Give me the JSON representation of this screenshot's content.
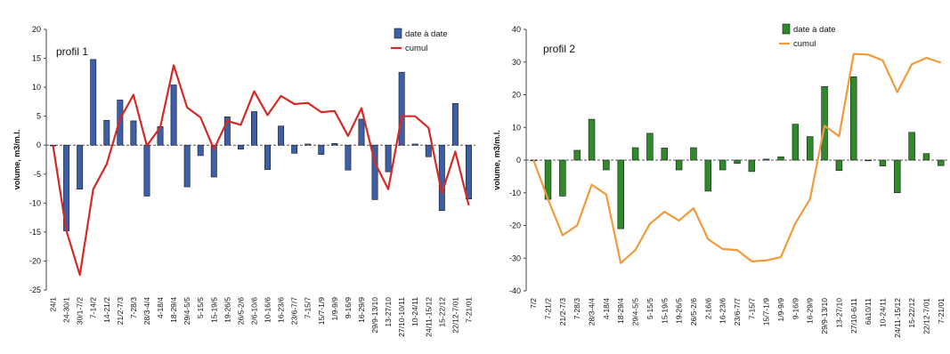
{
  "chart_data": [
    {
      "type": "bar",
      "annotation": "profil 1",
      "ylabel": "volume, m3/m.l.",
      "ylim": [
        -25,
        20
      ],
      "yticks": [
        -25,
        -20,
        -15,
        -10,
        -5,
        0,
        5,
        10,
        15,
        20
      ],
      "legend": "top-right",
      "categories": [
        "24/1",
        "24-30/1",
        "30/1-7/2",
        "7-14/2",
        "14-21/2",
        "21/2-7/3",
        "7-28/3",
        "28/3-4/4",
        "4-18/4",
        "18-29/4",
        "29/4-5/5",
        "5-15/5",
        "15-19/5",
        "19-26/5",
        "26/5-2/6",
        "2/6-10/6",
        "10-16/6",
        "16-23/6",
        "23/6-7/7",
        "7-15/7",
        "15/7-1/9",
        "1/9-9/9",
        "9-16/9",
        "16-29/9",
        "29/9-13/10",
        "13-27/10",
        "27/10-10/11",
        "10-24/11",
        "24/11-15/12",
        "15-22/12",
        "22/12-7/01",
        "7-21/01"
      ],
      "series": [
        {
          "name": "date à date",
          "kind": "bar",
          "color": "#3d5fa8",
          "values": [
            0,
            -14.8,
            -7.6,
            14.8,
            4.3,
            7.8,
            4.2,
            -8.8,
            3.2,
            10.4,
            -7.2,
            -1.8,
            -5.5,
            4.9,
            -0.7,
            5.8,
            -4.2,
            3.3,
            -1.4,
            0.2,
            -1.6,
            0.3,
            -4.3,
            4.5,
            -9.4,
            -4.6,
            12.6,
            0.2,
            -2.0,
            -11.3,
            7.2,
            -9.3
          ]
        },
        {
          "name": "cumul",
          "kind": "line",
          "color": "#d42a25",
          "values": [
            0,
            -14.8,
            -22.4,
            -7.6,
            -3.3,
            4.5,
            8.7,
            -0.1,
            3.1,
            13.8,
            6.5,
            4.8,
            -0.7,
            4.2,
            3.5,
            9.3,
            5.2,
            8.5,
            7.1,
            7.3,
            5.7,
            5.9,
            1.6,
            6.4,
            -3.0,
            -7.6,
            5.0,
            5.0,
            3.0,
            -8.3,
            -1.1,
            -10.4
          ]
        }
      ]
    },
    {
      "type": "bar",
      "annotation": "profil 2",
      "ylabel": "volume, m3/m.l.",
      "ylim": [
        -40,
        40
      ],
      "yticks": [
        -40,
        -30,
        -20,
        -10,
        0,
        10,
        20,
        30,
        40
      ],
      "legend": "top-right",
      "categories": [
        "7/2",
        "7-21/2",
        "21/2-7/3",
        "7-28/3",
        "28/3-4/4",
        "4-18/4",
        "18-29/4",
        "29/4-5/5",
        "5-15/5",
        "15-19/5",
        "19-26/5",
        "26/5-2/6",
        "2-16/6",
        "16-23/6",
        "23/6-7/7",
        "7-15/7",
        "15/7-1/9",
        "1/9-9/9",
        "9-16/9",
        "16-29/9",
        "29/9-13/10",
        "13-27/10",
        "27/10-6/11",
        "6à10/11",
        "10-24/11",
        "24/11-15/12",
        "15-22/12",
        "22/12-7/01",
        "7-21/01"
      ],
      "series": [
        {
          "name": "date à date",
          "kind": "bar",
          "color": "#2e8a2a",
          "values": [
            0,
            -12,
            -11,
            3,
            12.5,
            -3,
            -21,
            3.8,
            8.2,
            3.7,
            -3,
            3.8,
            -9.5,
            -3,
            -1,
            -3.5,
            0.3,
            1,
            11,
            7.2,
            22.5,
            -3.2,
            25.5,
            -0.2,
            -1.8,
            -10,
            8.5,
            2,
            -1.7
          ]
        },
        {
          "name": "cumul",
          "kind": "line",
          "color": "#f29a3a",
          "values": [
            0,
            -12,
            -23,
            -20,
            -7.5,
            -10.5,
            -31.5,
            -27.5,
            -19.5,
            -15.8,
            -18.5,
            -14.7,
            -24.2,
            -27.2,
            -27.5,
            -31,
            -30.7,
            -29.7,
            -19.3,
            -12,
            10.5,
            7.3,
            32.5,
            32.3,
            30.5,
            20.8,
            29.3,
            31.3,
            29.8
          ]
        }
      ]
    }
  ]
}
